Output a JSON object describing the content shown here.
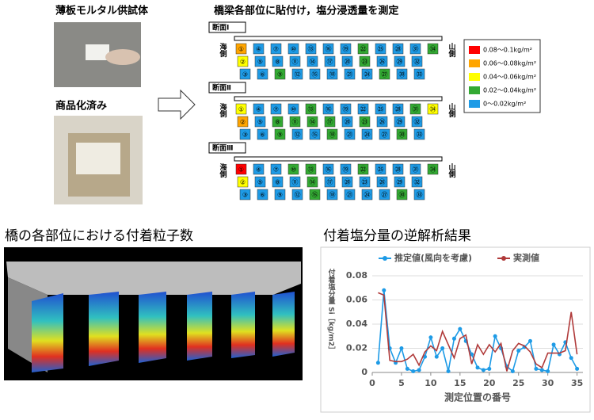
{
  "left_panel": {
    "specimen_title": "薄板モルタル供試体",
    "product_title": "商品化済み"
  },
  "diagram": {
    "title": "橋梁各部位に貼付け，塩分浸透量を測定",
    "sea_label": "海側",
    "mountain_label": "山側",
    "cell_labels": [
      "①",
      "②",
      "③",
      "④",
      "⑤",
      "⑥",
      "⑦",
      "⑧",
      "⑨",
      "⑩",
      "⑪",
      "⑫",
      "⑬",
      "⑭",
      "⑮",
      "⑯",
      "⑰",
      "⑱",
      "⑲",
      "⑳",
      "㉑",
      "㉒",
      "㉓",
      "㉔",
      "㉕",
      "㉖",
      "㉗",
      "㉘",
      "㉙",
      "㉚",
      "㉛",
      "㉜",
      "㉝",
      "㉞"
    ],
    "sections": [
      {
        "name": "断面Ⅰ",
        "levels": [
          1,
          2,
          4,
          4,
          4,
          4,
          4,
          4,
          3,
          4,
          4,
          4,
          4,
          4,
          4,
          4,
          4,
          4,
          4,
          4,
          4,
          3,
          3,
          4,
          4,
          4,
          3,
          4,
          4,
          4,
          4,
          4,
          4,
          3
        ]
      },
      {
        "name": "断面Ⅱ",
        "levels": [
          2,
          1,
          4,
          4,
          4,
          4,
          4,
          3,
          3,
          4,
          3,
          4,
          3,
          3,
          4,
          4,
          3,
          3,
          4,
          4,
          4,
          4,
          3,
          4,
          4,
          4,
          4,
          4,
          4,
          3,
          3,
          4,
          4,
          2
        ]
      },
      {
        "name": "断面Ⅲ",
        "levels": [
          0,
          2,
          4,
          4,
          4,
          4,
          4,
          4,
          4,
          3,
          4,
          4,
          3,
          3,
          3,
          4,
          4,
          4,
          4,
          4,
          4,
          3,
          4,
          4,
          4,
          4,
          4,
          4,
          4,
          3,
          4,
          4,
          4,
          3
        ]
      }
    ],
    "legend": [
      {
        "label": "0.08～0.1kg/m²",
        "color": "#ff0000"
      },
      {
        "label": "0.06～0.08kg/m²",
        "color": "#ffa500"
      },
      {
        "label": "0.04～0.06kg/m²",
        "color": "#ffff00"
      },
      {
        "label": "0.02～0.04kg/m²",
        "color": "#33aa33"
      },
      {
        "label": "0～0.02kg/m²",
        "color": "#1e9be6"
      }
    ]
  },
  "heatmap": {
    "title": "橋の各部位における付着粒子数"
  },
  "chart_data": {
    "type": "line",
    "title": "付着塩分量の逆解析結果",
    "x_label": "測定位置の番号",
    "y_label": "付着塩分量 Si［kg/m2］",
    "x": [
      1,
      2,
      3,
      4,
      5,
      6,
      7,
      8,
      9,
      10,
      11,
      12,
      13,
      14,
      15,
      16,
      17,
      18,
      19,
      20,
      21,
      22,
      23,
      24,
      25,
      26,
      27,
      28,
      29,
      30,
      31,
      32,
      33,
      34,
      35
    ],
    "series": [
      {
        "name": "推定値(風向を考慮)",
        "color": "#1e9be6",
        "marker": true,
        "values": [
          0.008,
          0.068,
          0.02,
          0.008,
          0.02,
          0.003,
          0.001,
          0.002,
          0.013,
          0.029,
          0.013,
          0.02,
          0.001,
          0.028,
          0.036,
          0.026,
          0.015,
          0.004,
          0.002,
          0.003,
          0.03,
          0.02,
          0.005,
          0.001,
          0.018,
          0.021,
          0.026,
          0.003,
          0.002,
          0.001,
          0.023,
          0.015,
          0.025,
          0.012,
          0.003
        ]
      },
      {
        "name": "実測値",
        "color": "#b03a3a",
        "marker": false,
        "values": [
          0.066,
          0.064,
          0.01,
          0.009,
          0.009,
          0.011,
          0.015,
          0.006,
          0.017,
          0.022,
          0.018,
          0.034,
          0.023,
          0.012,
          0.028,
          0.031,
          0.007,
          0.023,
          0.015,
          0.023,
          0.017,
          0.024,
          0.001,
          0.018,
          0.024,
          0.022,
          0.017,
          0.007,
          0.004,
          0.016,
          0.016,
          0.016,
          0.018,
          0.05,
          0.015
        ]
      }
    ],
    "xlim": [
      0,
      36
    ],
    "xticks": [
      0,
      5,
      10,
      15,
      20,
      25,
      30,
      35
    ],
    "ylim": [
      0,
      0.08
    ],
    "yticks": [
      0,
      0.02,
      0.04,
      0.06,
      0.08
    ],
    "grid": true
  }
}
